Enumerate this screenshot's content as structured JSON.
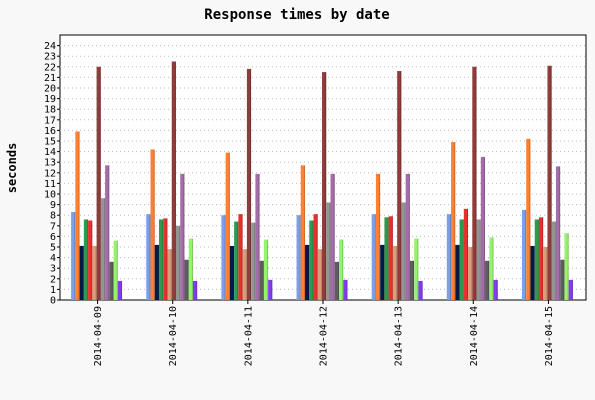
{
  "chart_data": {
    "type": "bar",
    "title": "Response times by date",
    "xlabel": "",
    "ylabel": "seconds",
    "ylim": [
      0,
      25
    ],
    "yticks": [
      0,
      1,
      2,
      3,
      4,
      5,
      6,
      7,
      8,
      9,
      10,
      11,
      12,
      13,
      14,
      15,
      16,
      17,
      18,
      19,
      20,
      21,
      22,
      23,
      24
    ],
    "grid": "horizontal dotted",
    "legend": "none",
    "categories": [
      "2014-04-09",
      "2014-04-10",
      "2014-04-11",
      "2014-04-12",
      "2014-04-13",
      "2014-04-14",
      "2014-04-15"
    ],
    "series": [
      {
        "color": "#7b9fe8",
        "values": [
          8.3,
          8.1,
          8.0,
          8.0,
          8.1,
          8.1,
          8.5
        ]
      },
      {
        "color": "#ff8033",
        "values": [
          15.9,
          14.2,
          13.9,
          12.7,
          11.9,
          14.9,
          15.2
        ]
      },
      {
        "color": "#061a4a",
        "values": [
          5.1,
          5.2,
          5.1,
          5.2,
          5.2,
          5.2,
          5.1
        ]
      },
      {
        "color": "#2e9a4e",
        "values": [
          7.6,
          7.6,
          7.4,
          7.5,
          7.8,
          7.6,
          7.6
        ]
      },
      {
        "color": "#e8302e",
        "values": [
          7.5,
          7.7,
          8.1,
          8.1,
          7.9,
          8.6,
          7.8
        ]
      },
      {
        "color": "#d7a07a",
        "values": [
          5.1,
          4.8,
          4.8,
          4.8,
          5.1,
          5.0,
          5.0
        ]
      },
      {
        "color": "#913b3b",
        "values": [
          22.0,
          22.5,
          21.8,
          21.5,
          21.6,
          22.0,
          22.1
        ]
      },
      {
        "color": "#959595",
        "values": [
          9.6,
          7.0,
          7.3,
          9.2,
          9.2,
          7.6,
          7.4
        ]
      },
      {
        "color": "#a46ca8",
        "values": [
          12.7,
          11.9,
          11.9,
          11.9,
          11.9,
          13.5,
          12.6
        ]
      },
      {
        "color": "#5e5e5e",
        "values": [
          3.6,
          3.8,
          3.7,
          3.6,
          3.7,
          3.7,
          3.8
        ]
      },
      {
        "color": "#97f26f",
        "values": [
          5.6,
          5.8,
          5.7,
          5.7,
          5.8,
          5.9,
          6.3
        ]
      },
      {
        "color": "#7f3ded",
        "values": [
          1.8,
          1.8,
          1.9,
          1.9,
          1.8,
          1.9,
          1.9
        ]
      }
    ]
  }
}
